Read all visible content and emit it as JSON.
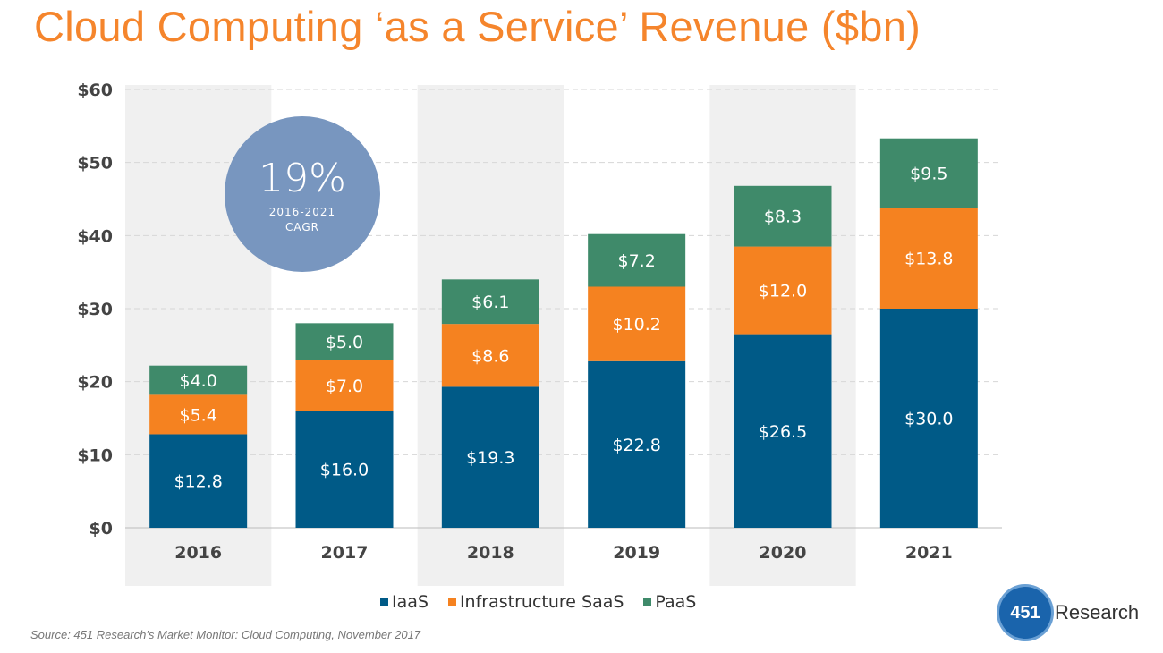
{
  "title": "Cloud Computing ‘as a Service’ Revenue ($bn)",
  "source": "Source: 451 Research's Market Monitor: Cloud Computing, November 2017",
  "badge": {
    "value": "19%",
    "line1": "2016-2021",
    "line2": "CAGR"
  },
  "logo": {
    "number": "451",
    "text": "Research"
  },
  "chart_data": {
    "type": "bar",
    "stacked": true,
    "title": "Cloud Computing ‘as a Service’ Revenue ($bn)",
    "categories": [
      "2016",
      "2017",
      "2018",
      "2019",
      "2020",
      "2021"
    ],
    "series": [
      {
        "name": "IaaS",
        "color": "#005a87",
        "values": [
          12.8,
          16.0,
          19.3,
          22.8,
          26.5,
          30.0
        ],
        "labels": [
          "$12.8",
          "$16.0",
          "$19.3",
          "$22.8",
          "$26.5",
          "$30.0"
        ]
      },
      {
        "name": "Infrastructure SaaS",
        "color": "#f58220",
        "values": [
          5.4,
          7.0,
          8.6,
          10.2,
          12.0,
          13.8
        ],
        "labels": [
          "$5.4",
          "$7.0",
          "$8.6",
          "$10.2",
          "$12.0",
          "$13.8"
        ]
      },
      {
        "name": "PaaS",
        "color": "#3f8a6a",
        "values": [
          4.0,
          5.0,
          6.1,
          7.2,
          8.3,
          9.5
        ],
        "labels": [
          "$4.0",
          "$5.0",
          "$6.1",
          "$7.2",
          "$8.3",
          "$9.5"
        ]
      }
    ],
    "ylim": [
      0,
      60
    ],
    "yticks": [
      0,
      10,
      20,
      30,
      40,
      50,
      60
    ],
    "ytick_labels": [
      "$0",
      "$10",
      "$20",
      "$30",
      "$40",
      "$50",
      "$60"
    ],
    "grid": true,
    "legend": "bottom"
  }
}
